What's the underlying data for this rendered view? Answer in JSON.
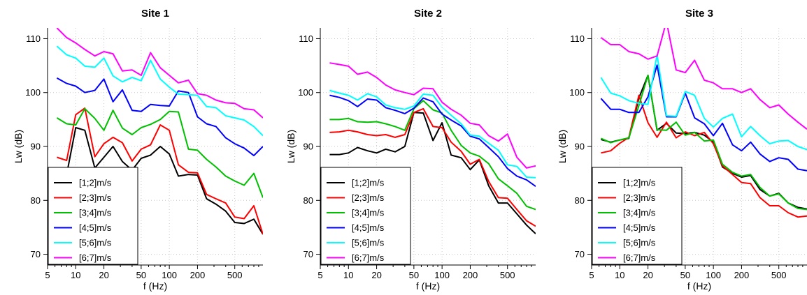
{
  "chart_data": [
    {
      "type": "line",
      "title": "Site 1",
      "xlabel": "f (Hz)",
      "ylabel": "Lw (dB)",
      "xscale": "log",
      "xlim": [
        5,
        1000
      ],
      "ylim": [
        68,
        112
      ],
      "xticks": [
        5,
        10,
        20,
        50,
        100,
        200,
        500
      ],
      "yticks": [
        70,
        80,
        90,
        100,
        110
      ],
      "grid": true,
      "legend": "bottom-left",
      "x": [
        6.3,
        8,
        10,
        12.5,
        16,
        20,
        25,
        31.5,
        40,
        50,
        63,
        80,
        100,
        125,
        160,
        200,
        250,
        315,
        400,
        500,
        630,
        800,
        1000
      ],
      "series": [
        {
          "name": "[1;2]m/s",
          "color": "#000000",
          "values": [
            83.5,
            84.8,
            93.5,
            93.0,
            86.0,
            88.0,
            90.0,
            87.2,
            85.6,
            87.8,
            88.4,
            90.0,
            88.6,
            84.5,
            84.8,
            84.7,
            80.3,
            79.3,
            78.0,
            75.9,
            75.7,
            76.5,
            73.7
          ]
        },
        {
          "name": "[2;3]m/s",
          "color": "#ff0000",
          "values": [
            88.0,
            87.4,
            95.9,
            97.1,
            88.1,
            90.5,
            91.7,
            90.7,
            87.3,
            89.5,
            90.3,
            94.0,
            93.0,
            86.6,
            85.2,
            85.1,
            81.1,
            80.3,
            79.5,
            76.9,
            76.6,
            79.0,
            73.7
          ]
        },
        {
          "name": "[3;4]m/s",
          "color": "#00c000",
          "values": [
            95.3,
            94.2,
            94.0,
            97.0,
            95.2,
            93.0,
            96.7,
            93.4,
            92.2,
            93.5,
            94.1,
            95.0,
            96.5,
            96.4,
            89.5,
            89.3,
            87.6,
            86.2,
            84.5,
            83.6,
            82.8,
            85.0,
            80.5
          ]
        },
        {
          "name": "[4;5]m/s",
          "color": "#0000ff",
          "values": [
            102.7,
            101.7,
            101.2,
            100.0,
            100.4,
            102.5,
            98.3,
            100.5,
            96.7,
            96.5,
            97.8,
            97.6,
            97.5,
            100.3,
            100.0,
            95.5,
            94.2,
            93.7,
            91.6,
            90.5,
            89.7,
            88.3,
            90.0
          ]
        },
        {
          "name": "[5;6]m/s",
          "color": "#00ffff",
          "values": [
            108.6,
            107.0,
            106.4,
            104.9,
            104.7,
            106.4,
            103.1,
            102.0,
            102.8,
            102.2,
            106.0,
            102.5,
            101.0,
            99.7,
            99.6,
            99.5,
            97.4,
            97.2,
            95.7,
            95.3,
            94.9,
            93.7,
            92.0
          ]
        },
        {
          "name": "[6;7]m/s",
          "color": "#ff00ff",
          "values": [
            112.0,
            110.2,
            109.2,
            108.0,
            106.8,
            107.6,
            107.2,
            104.0,
            104.2,
            103.2,
            107.4,
            104.6,
            103.2,
            101.8,
            102.3,
            99.8,
            99.5,
            98.6,
            98.1,
            98.0,
            97.0,
            96.8,
            95.3
          ]
        }
      ]
    },
    {
      "type": "line",
      "title": "Site 2",
      "xlabel": "f (Hz)",
      "ylabel": "Lw (dB)",
      "xscale": "log",
      "xlim": [
        5,
        1000
      ],
      "ylim": [
        68,
        112
      ],
      "xticks": [
        5,
        10,
        20,
        50,
        100,
        200,
        500
      ],
      "yticks": [
        70,
        80,
        90,
        100,
        110
      ],
      "grid": true,
      "legend": "bottom-left",
      "x": [
        6.3,
        8,
        10,
        12.5,
        16,
        20,
        25,
        31.5,
        40,
        50,
        63,
        80,
        100,
        125,
        160,
        200,
        250,
        315,
        400,
        500,
        630,
        800,
        1000
      ],
      "series": [
        {
          "name": "[1;2]m/s",
          "color": "#000000",
          "values": [
            88.5,
            88.5,
            88.8,
            89.8,
            89.2,
            88.8,
            89.5,
            89.0,
            90.0,
            96.3,
            96.2,
            91.1,
            94.4,
            88.4,
            87.9,
            85.7,
            87.5,
            82.7,
            79.5,
            79.5,
            77.5,
            75.4,
            73.8
          ]
        },
        {
          "name": "[2;3]m/s",
          "color": "#ff0000",
          "values": [
            92.6,
            92.7,
            93.0,
            92.7,
            92.2,
            92.0,
            92.2,
            91.7,
            92.2,
            96.3,
            97.0,
            93.7,
            93.5,
            90.8,
            89.1,
            86.7,
            87.6,
            83.5,
            80.5,
            80.4,
            78.3,
            76.2,
            75.2
          ]
        },
        {
          "name": "[3;4]m/s",
          "color": "#00c000",
          "values": [
            95.0,
            95.0,
            95.2,
            94.6,
            94.5,
            94.6,
            94.2,
            93.7,
            93.0,
            97.0,
            98.5,
            96.8,
            96.2,
            93.0,
            90.2,
            88.8,
            88.2,
            86.8,
            84.0,
            82.7,
            81.3,
            78.9,
            78.3
          ]
        },
        {
          "name": "[4;5]m/s",
          "color": "#0000ff",
          "values": [
            99.5,
            99.1,
            98.5,
            97.4,
            98.8,
            98.6,
            97.2,
            96.7,
            96.1,
            97.1,
            99.0,
            98.3,
            96.0,
            94.9,
            93.8,
            91.9,
            91.4,
            89.8,
            88.1,
            85.9,
            84.5,
            83.8,
            82.6
          ]
        },
        {
          "name": "[5;6]m/s",
          "color": "#00ffff",
          "values": [
            100.4,
            99.9,
            99.5,
            98.6,
            99.8,
            99.2,
            97.7,
            97.2,
            96.9,
            97.5,
            99.7,
            99.5,
            97.3,
            95.8,
            94.2,
            92.1,
            91.9,
            90.6,
            89.3,
            86.6,
            86.3,
            84.3,
            84.2
          ]
        },
        {
          "name": "[6;7]m/s",
          "color": "#ff00ff",
          "values": [
            105.5,
            105.2,
            104.9,
            103.4,
            103.8,
            102.8,
            101.4,
            100.5,
            100.0,
            99.6,
            100.8,
            100.7,
            98.2,
            96.9,
            95.8,
            94.3,
            94.0,
            92.0,
            91.0,
            92.3,
            88.0,
            86.0,
            86.4
          ]
        }
      ]
    },
    {
      "type": "line",
      "title": "Site 3",
      "xlabel": "f (Hz)",
      "ylabel": "Lw (dB)",
      "xscale": "log",
      "xlim": [
        5,
        1000
      ],
      "ylim": [
        68,
        112
      ],
      "xticks": [
        5,
        10,
        20,
        50,
        100,
        200,
        500
      ],
      "yticks": [
        70,
        80,
        90,
        100,
        110
      ],
      "grid": true,
      "legend": "bottom-left",
      "x": [
        6.3,
        8,
        10,
        12.5,
        16,
        20,
        25,
        31.5,
        40,
        50,
        63,
        80,
        100,
        125,
        160,
        200,
        250,
        315,
        400,
        500,
        630,
        800,
        1000
      ],
      "series": [
        {
          "name": "[1;2]m/s",
          "color": "#000000",
          "values": [
            91.3,
            90.8,
            91.2,
            91.5,
            99.0,
            103.2,
            93.0,
            94.3,
            92.5,
            92.4,
            92.6,
            92.1,
            90.8,
            86.2,
            85.0,
            84.3,
            84.6,
            82.0,
            80.8,
            81.3,
            79.5,
            78.7,
            78.4
          ]
        },
        {
          "name": "[2;3]m/s",
          "color": "#ff0000",
          "values": [
            88.8,
            89.2,
            90.6,
            91.7,
            99.5,
            94.4,
            91.7,
            94.5,
            91.6,
            92.7,
            92.0,
            92.6,
            90.5,
            86.4,
            84.8,
            83.3,
            83.1,
            80.5,
            79.0,
            79.0,
            77.7,
            76.9,
            77.1
          ]
        },
        {
          "name": "[3;4]m/s",
          "color": "#00c000",
          "values": [
            91.5,
            90.7,
            91.2,
            91.6,
            97.6,
            103.2,
            93.1,
            93.0,
            94.5,
            92.1,
            92.6,
            91.0,
            91.2,
            86.7,
            85.2,
            84.5,
            84.8,
            82.4,
            80.8,
            81.2,
            79.5,
            78.5,
            78.3
          ]
        },
        {
          "name": "[4;5]m/s",
          "color": "#0000ff",
          "values": [
            98.9,
            96.9,
            96.9,
            96.3,
            96.3,
            99.2,
            105.1,
            95.5,
            95.5,
            99.9,
            95.3,
            94.2,
            92.0,
            94.3,
            90.3,
            89.2,
            90.8,
            88.6,
            87.2,
            87.9,
            87.6,
            85.8,
            85.5
          ]
        },
        {
          "name": "[5;6]m/s",
          "color": "#00ffff",
          "values": [
            102.8,
            99.9,
            99.4,
            98.5,
            98.0,
            97.8,
            107.0,
            95.7,
            95.6,
            100.2,
            99.5,
            95.2,
            93.6,
            95.2,
            96.0,
            91.8,
            93.7,
            92.0,
            90.5,
            91.0,
            91.1,
            90.0,
            89.4
          ]
        },
        {
          "name": "[6;7]m/s",
          "color": "#ff00ff",
          "values": [
            110.2,
            108.9,
            108.9,
            107.6,
            107.2,
            106.2,
            106.8,
            113.2,
            104.2,
            103.7,
            106.0,
            102.3,
            101.8,
            100.7,
            100.7,
            100.0,
            100.7,
            98.7,
            97.2,
            97.7,
            96.0,
            94.5,
            93.2
          ]
        }
      ]
    }
  ]
}
